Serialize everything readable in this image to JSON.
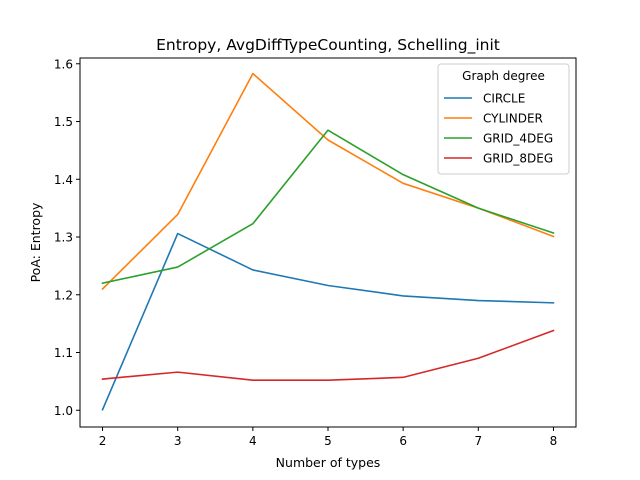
{
  "chart_data": {
    "type": "line",
    "title": "Entropy, AvgDiffTypeCounting, Schelling_init",
    "xlabel": "Number of types",
    "ylabel": "PoA: Entropy",
    "x": [
      2,
      3,
      4,
      5,
      6,
      7,
      8
    ],
    "xlim": [
      1.7,
      8.3
    ],
    "ylim": [
      0.971,
      1.61
    ],
    "xticks": [
      2,
      3,
      4,
      5,
      6,
      7,
      8
    ],
    "yticks": [
      1.0,
      1.1,
      1.2,
      1.3,
      1.4,
      1.5,
      1.6
    ],
    "ytick_labels": [
      "1.0",
      "1.1",
      "1.2",
      "1.3",
      "1.4",
      "1.5",
      "1.6"
    ],
    "grid": false,
    "legend": {
      "title": "Graph degree",
      "position": "upper right"
    },
    "series": [
      {
        "name": "CIRCLE",
        "color": "#1f77b4",
        "values": [
          1.001,
          1.306,
          1.243,
          1.216,
          1.198,
          1.19,
          1.186
        ]
      },
      {
        "name": "CYLINDER",
        "color": "#ff7f0e",
        "values": [
          1.21,
          1.339,
          1.583,
          1.468,
          1.393,
          1.35,
          1.301
        ]
      },
      {
        "name": "GRID_4DEG",
        "color": "#2ca02c",
        "values": [
          1.22,
          1.248,
          1.323,
          1.485,
          1.408,
          1.35,
          1.307
        ]
      },
      {
        "name": "GRID_8DEG",
        "color": "#d62728",
        "values": [
          1.054,
          1.066,
          1.052,
          1.052,
          1.057,
          1.09,
          1.138
        ]
      }
    ]
  }
}
